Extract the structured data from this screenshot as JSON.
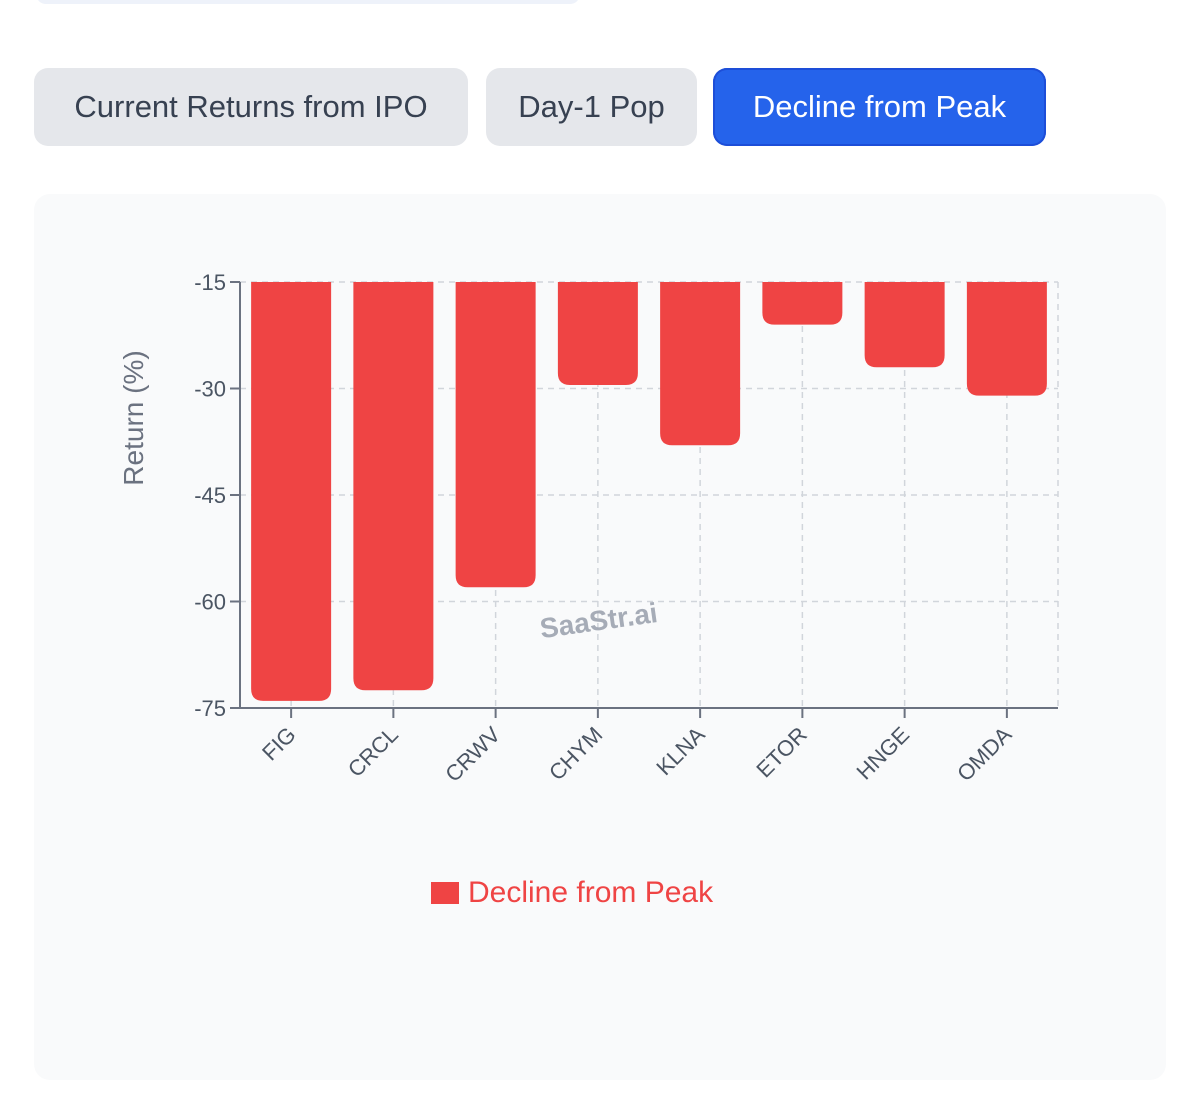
{
  "tabs": [
    {
      "label": "Current Returns from IPO",
      "active": false
    },
    {
      "label": "Day-1 Pop",
      "active": false
    },
    {
      "label": "Decline from Peak",
      "active": true
    }
  ],
  "colors": {
    "bar": "#ef4444",
    "accent": "#2563eb",
    "watermark": "#9ca3af"
  },
  "watermark": "SaaStr.ai",
  "chart_data": {
    "type": "bar",
    "categories": [
      "FIG",
      "CRCL",
      "CRWV",
      "CHYM",
      "KLNA",
      "ETOR",
      "HNGE",
      "OMDA"
    ],
    "series": [
      {
        "name": "Decline from Peak",
        "values": [
          -74,
          -72.5,
          -58,
          -29.5,
          -38,
          -21,
          -27,
          -31
        ]
      }
    ],
    "ylabel": "Return (%)",
    "xlabel": "",
    "ylim": [
      -75,
      -15
    ],
    "yticks": [
      -15,
      -30,
      -45,
      -60,
      -75
    ],
    "grid": true,
    "legend": "bottom-center"
  }
}
